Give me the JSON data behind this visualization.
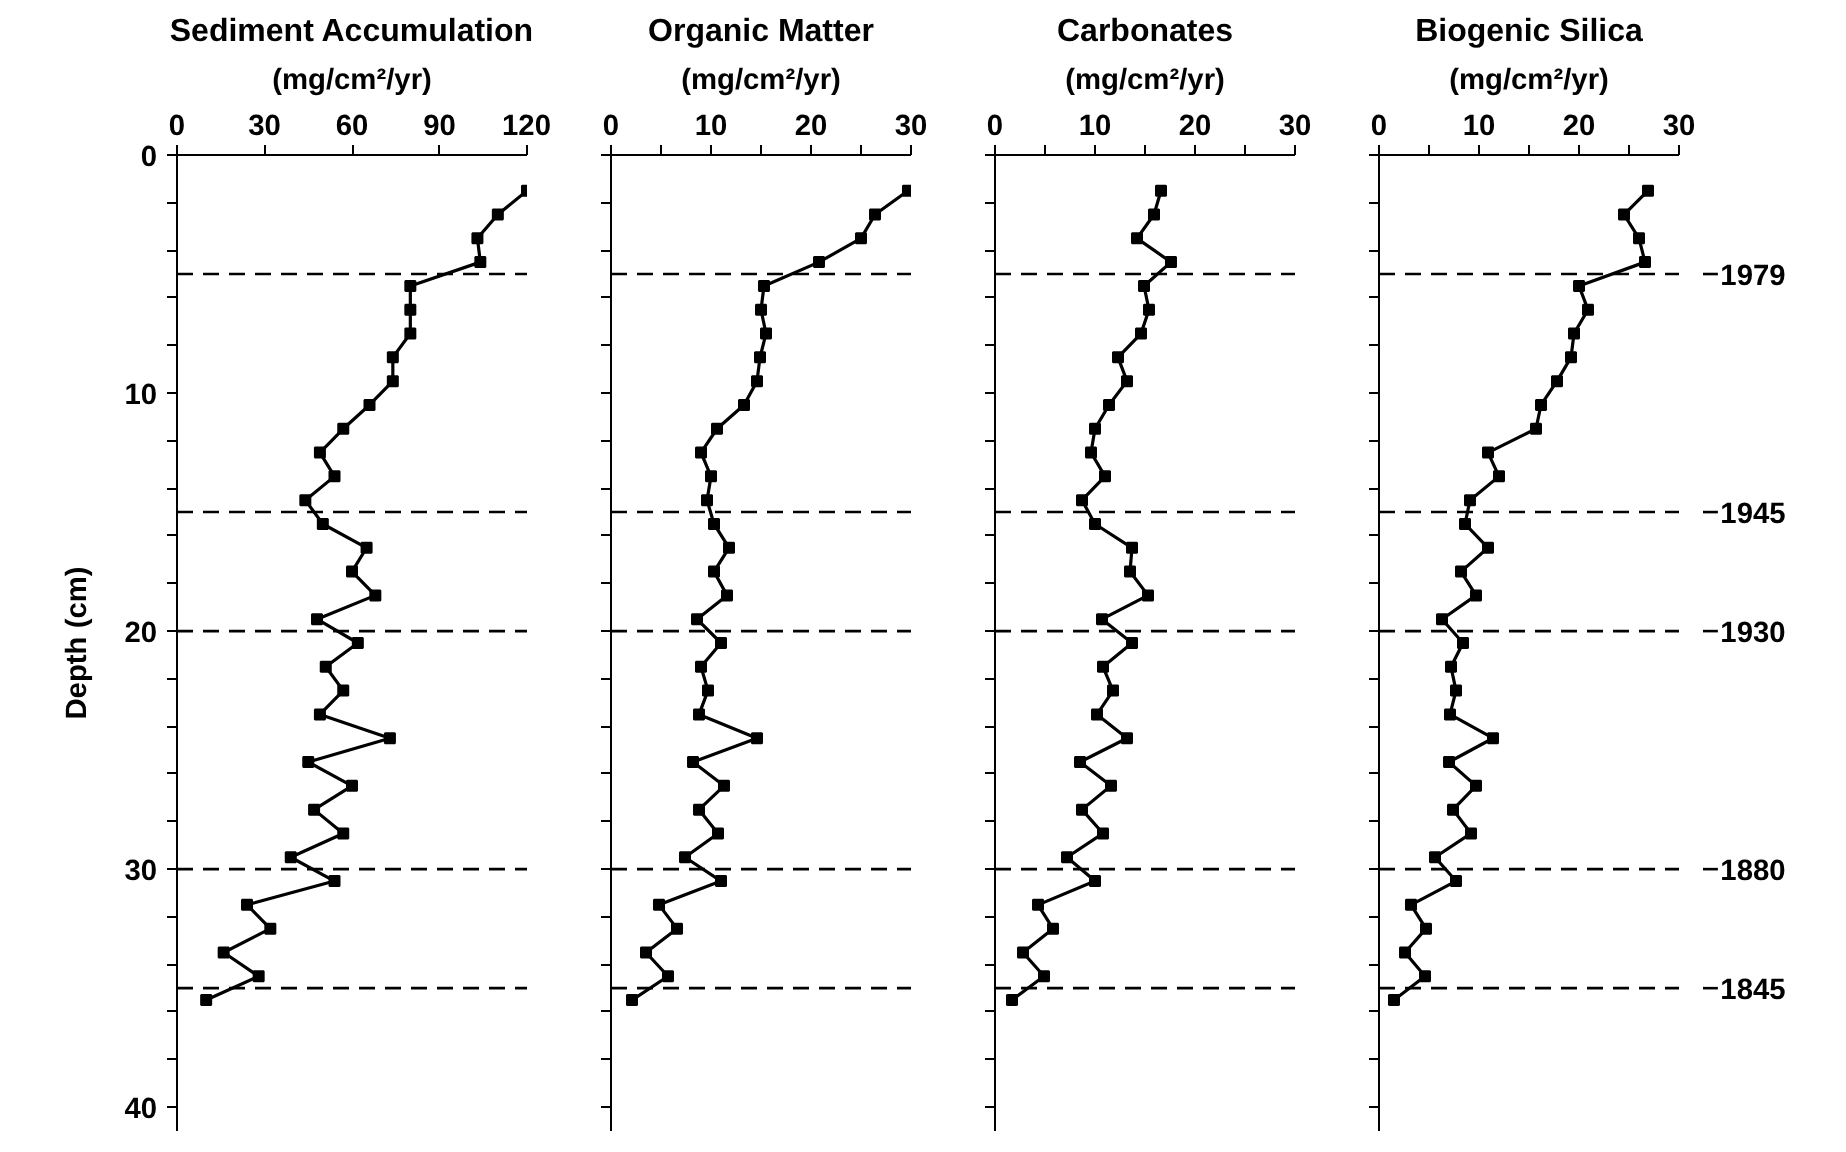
{
  "chart_data": [
    {
      "type": "line",
      "title": "Sediment Accumulation",
      "xlabel": "(mg/cm²/yr)",
      "ylabel": "Depth (cm)",
      "marker": "square",
      "line_style": "solid",
      "xlim": [
        0,
        120
      ],
      "xticks": [
        0,
        30,
        60,
        90,
        120
      ],
      "ylim": [
        41,
        0
      ],
      "yticks": [
        0,
        {
          "value": 2,
          "label": null
        },
        {
          "value": 4,
          "label": null
        },
        {
          "value": 6,
          "label": null
        },
        {
          "value": 8,
          "label": null
        },
        10,
        {
          "value": 12,
          "label": null
        },
        {
          "value": 14,
          "label": null
        },
        {
          "value": 16,
          "label": null
        },
        {
          "value": 18,
          "label": null
        },
        20,
        {
          "value": 22,
          "label": null
        },
        {
          "value": 24,
          "label": null
        },
        {
          "value": 26,
          "label": null
        },
        {
          "value": 28,
          "label": null
        },
        30,
        {
          "value": 32,
          "label": null
        },
        {
          "value": 34,
          "label": null
        },
        {
          "value": 36,
          "label": null
        },
        {
          "value": 38,
          "label": null
        },
        40
      ],
      "series": [
        {
          "color": "#000000",
          "x": [
            120,
            110,
            103,
            104,
            80,
            80,
            80,
            74,
            74,
            66,
            57,
            49,
            54,
            44,
            50,
            65,
            60,
            68,
            48,
            62,
            51,
            57,
            49,
            73,
            45,
            60,
            47,
            57,
            39,
            54,
            24,
            32,
            16,
            28,
            10
          ],
          "values": [
            1.5,
            2.5,
            3.5,
            4.5,
            5.5,
            6.5,
            7.5,
            8.5,
            9.5,
            10.5,
            11.5,
            12.5,
            13.5,
            14.5,
            15.5,
            16.5,
            17.5,
            18.5,
            19.5,
            20.5,
            21.5,
            22.5,
            23.5,
            24.5,
            25.5,
            26.5,
            27.5,
            28.5,
            29.5,
            30.5,
            31.5,
            32.5,
            33.5,
            34.5,
            35.5
          ]
        }
      ],
      "ref_lines": [
        {
          "axis": "y",
          "value": 5,
          "line_style": "dashed"
        },
        {
          "axis": "y",
          "value": 15,
          "line_style": "dashed"
        },
        {
          "axis": "y",
          "value": 20,
          "line_style": "dashed"
        },
        {
          "axis": "y",
          "value": 30,
          "line_style": "dashed"
        },
        {
          "axis": "y",
          "value": 35,
          "line_style": "dashed"
        }
      ]
    },
    {
      "type": "line",
      "title": "Organic Matter",
      "xlabel": "(mg/cm²/yr)",
      "marker": "square",
      "line_style": "solid",
      "tick_labels": "x",
      "xlim": [
        0,
        30
      ],
      "xticks": [
        0,
        {
          "value": 5,
          "label": null
        },
        10,
        {
          "value": 15,
          "label": null
        },
        20,
        {
          "value": 25,
          "label": null
        },
        30
      ],
      "ylim": [
        41,
        0
      ],
      "yticks": [
        0,
        {
          "value": 2,
          "label": null
        },
        {
          "value": 4,
          "label": null
        },
        {
          "value": 6,
          "label": null
        },
        {
          "value": 8,
          "label": null
        },
        10,
        {
          "value": 12,
          "label": null
        },
        {
          "value": 14,
          "label": null
        },
        {
          "value": 16,
          "label": null
        },
        {
          "value": 18,
          "label": null
        },
        20,
        {
          "value": 22,
          "label": null
        },
        {
          "value": 24,
          "label": null
        },
        {
          "value": 26,
          "label": null
        },
        {
          "value": 28,
          "label": null
        },
        30,
        {
          "value": 32,
          "label": null
        },
        {
          "value": 34,
          "label": null
        },
        {
          "value": 36,
          "label": null
        },
        {
          "value": 38,
          "label": null
        },
        40
      ],
      "series": [
        {
          "color": "#000000",
          "x": [
            29.7,
            26.4,
            25.0,
            20.8,
            15.3,
            15.0,
            15.5,
            14.9,
            14.6,
            13.3,
            10.6,
            9.0,
            10.0,
            9.6,
            10.3,
            11.8,
            10.3,
            11.6,
            8.6,
            11.0,
            9.0,
            9.7,
            8.8,
            14.6,
            8.2,
            11.3,
            8.8,
            10.7,
            7.4,
            11.0,
            4.8,
            6.6,
            3.5,
            5.7,
            2.1
          ],
          "values": [
            1.5,
            2.5,
            3.5,
            4.5,
            5.5,
            6.5,
            7.5,
            8.5,
            9.5,
            10.5,
            11.5,
            12.5,
            13.5,
            14.5,
            15.5,
            16.5,
            17.5,
            18.5,
            19.5,
            20.5,
            21.5,
            22.5,
            23.5,
            24.5,
            25.5,
            26.5,
            27.5,
            28.5,
            29.5,
            30.5,
            31.5,
            32.5,
            33.5,
            34.5,
            35.5
          ]
        }
      ],
      "ref_lines": [
        {
          "axis": "y",
          "value": 5,
          "line_style": "dashed"
        },
        {
          "axis": "y",
          "value": 15,
          "line_style": "dashed"
        },
        {
          "axis": "y",
          "value": 20,
          "line_style": "dashed"
        },
        {
          "axis": "y",
          "value": 30,
          "line_style": "dashed"
        },
        {
          "axis": "y",
          "value": 35,
          "line_style": "dashed"
        }
      ]
    },
    {
      "type": "line",
      "title": "Carbonates",
      "xlabel": "(mg/cm²/yr)",
      "marker": "square",
      "line_style": "solid",
      "tick_labels": "x",
      "xlim": [
        0,
        30
      ],
      "xticks": [
        0,
        {
          "value": 5,
          "label": null
        },
        10,
        {
          "value": 15,
          "label": null
        },
        20,
        {
          "value": 25,
          "label": null
        },
        30
      ],
      "ylim": [
        41,
        0
      ],
      "yticks": [
        0,
        {
          "value": 2,
          "label": null
        },
        {
          "value": 4,
          "label": null
        },
        {
          "value": 6,
          "label": null
        },
        {
          "value": 8,
          "label": null
        },
        10,
        {
          "value": 12,
          "label": null
        },
        {
          "value": 14,
          "label": null
        },
        {
          "value": 16,
          "label": null
        },
        {
          "value": 18,
          "label": null
        },
        20,
        {
          "value": 22,
          "label": null
        },
        {
          "value": 24,
          "label": null
        },
        {
          "value": 26,
          "label": null
        },
        {
          "value": 28,
          "label": null
        },
        30,
        {
          "value": 32,
          "label": null
        },
        {
          "value": 34,
          "label": null
        },
        {
          "value": 36,
          "label": null
        },
        {
          "value": 38,
          "label": null
        },
        40
      ],
      "series": [
        {
          "color": "#000000",
          "x": [
            16.6,
            15.9,
            14.2,
            17.6,
            14.9,
            15.4,
            14.6,
            12.3,
            13.2,
            11.4,
            10.0,
            9.6,
            11.0,
            8.7,
            10.0,
            13.7,
            13.5,
            15.3,
            10.7,
            13.7,
            10.8,
            11.8,
            10.2,
            13.2,
            8.5,
            11.6,
            8.7,
            10.8,
            7.2,
            10.0,
            4.3,
            5.8,
            2.8,
            4.9,
            1.7
          ],
          "values": [
            1.5,
            2.5,
            3.5,
            4.5,
            5.5,
            6.5,
            7.5,
            8.5,
            9.5,
            10.5,
            11.5,
            12.5,
            13.5,
            14.5,
            15.5,
            16.5,
            17.5,
            18.5,
            19.5,
            20.5,
            21.5,
            22.5,
            23.5,
            24.5,
            25.5,
            26.5,
            27.5,
            28.5,
            29.5,
            30.5,
            31.5,
            32.5,
            33.5,
            34.5,
            35.5
          ]
        }
      ],
      "ref_lines": [
        {
          "axis": "y",
          "value": 5,
          "line_style": "dashed"
        },
        {
          "axis": "y",
          "value": 15,
          "line_style": "dashed"
        },
        {
          "axis": "y",
          "value": 20,
          "line_style": "dashed"
        },
        {
          "axis": "y",
          "value": 30,
          "line_style": "dashed"
        },
        {
          "axis": "y",
          "value": 35,
          "line_style": "dashed"
        }
      ]
    },
    {
      "type": "line",
      "title": "Biogenic Silica",
      "xlabel": "(mg/cm²/yr)",
      "marker": "square",
      "line_style": "solid",
      "tick_labels": "x",
      "xlim": [
        0,
        30
      ],
      "xticks": [
        0,
        {
          "value": 5,
          "label": null
        },
        10,
        {
          "value": 15,
          "label": null
        },
        20,
        {
          "value": 25,
          "label": null
        },
        30
      ],
      "ylim": [
        41,
        0
      ],
      "yticks": [
        0,
        {
          "value": 2,
          "label": null
        },
        {
          "value": 4,
          "label": null
        },
        {
          "value": 6,
          "label": null
        },
        {
          "value": 8,
          "label": null
        },
        10,
        {
          "value": 12,
          "label": null
        },
        {
          "value": 14,
          "label": null
        },
        {
          "value": 16,
          "label": null
        },
        {
          "value": 18,
          "label": null
        },
        20,
        {
          "value": 22,
          "label": null
        },
        {
          "value": 24,
          "label": null
        },
        {
          "value": 26,
          "label": null
        },
        {
          "value": 28,
          "label": null
        },
        30,
        {
          "value": 32,
          "label": null
        },
        {
          "value": 34,
          "label": null
        },
        {
          "value": 36,
          "label": null
        },
        {
          "value": 38,
          "label": null
        },
        40
      ],
      "series": [
        {
          "color": "#000000",
          "x": [
            26.9,
            24.5,
            26.0,
            26.6,
            20.0,
            20.9,
            19.5,
            19.2,
            17.8,
            16.2,
            15.7,
            10.9,
            12.0,
            9.1,
            8.6,
            10.9,
            8.2,
            9.7,
            6.3,
            8.4,
            7.2,
            7.7,
            7.1,
            11.4,
            7.0,
            9.7,
            7.4,
            9.2,
            5.6,
            7.7,
            3.2,
            4.7,
            2.6,
            4.6,
            1.5
          ],
          "values": [
            1.5,
            2.5,
            3.5,
            4.5,
            5.5,
            6.5,
            7.5,
            8.5,
            9.5,
            10.5,
            11.5,
            12.5,
            13.5,
            14.5,
            15.5,
            16.5,
            17.5,
            18.5,
            19.5,
            20.5,
            21.5,
            22.5,
            23.5,
            24.5,
            25.5,
            26.5,
            27.5,
            28.5,
            29.5,
            30.5,
            31.5,
            32.5,
            33.5,
            34.5,
            35.5
          ]
        }
      ],
      "ref_lines": [
        {
          "axis": "y",
          "value": 5,
          "line_style": "dashed"
        },
        {
          "axis": "y",
          "value": 15,
          "line_style": "dashed"
        },
        {
          "axis": "y",
          "value": 20,
          "line_style": "dashed"
        },
        {
          "axis": "y",
          "value": 30,
          "line_style": "dashed"
        },
        {
          "axis": "y",
          "value": 35,
          "line_style": "dashed"
        }
      ],
      "annotations": [
        "1979",
        "1945",
        "1930",
        "1880",
        "1845"
      ]
    }
  ]
}
